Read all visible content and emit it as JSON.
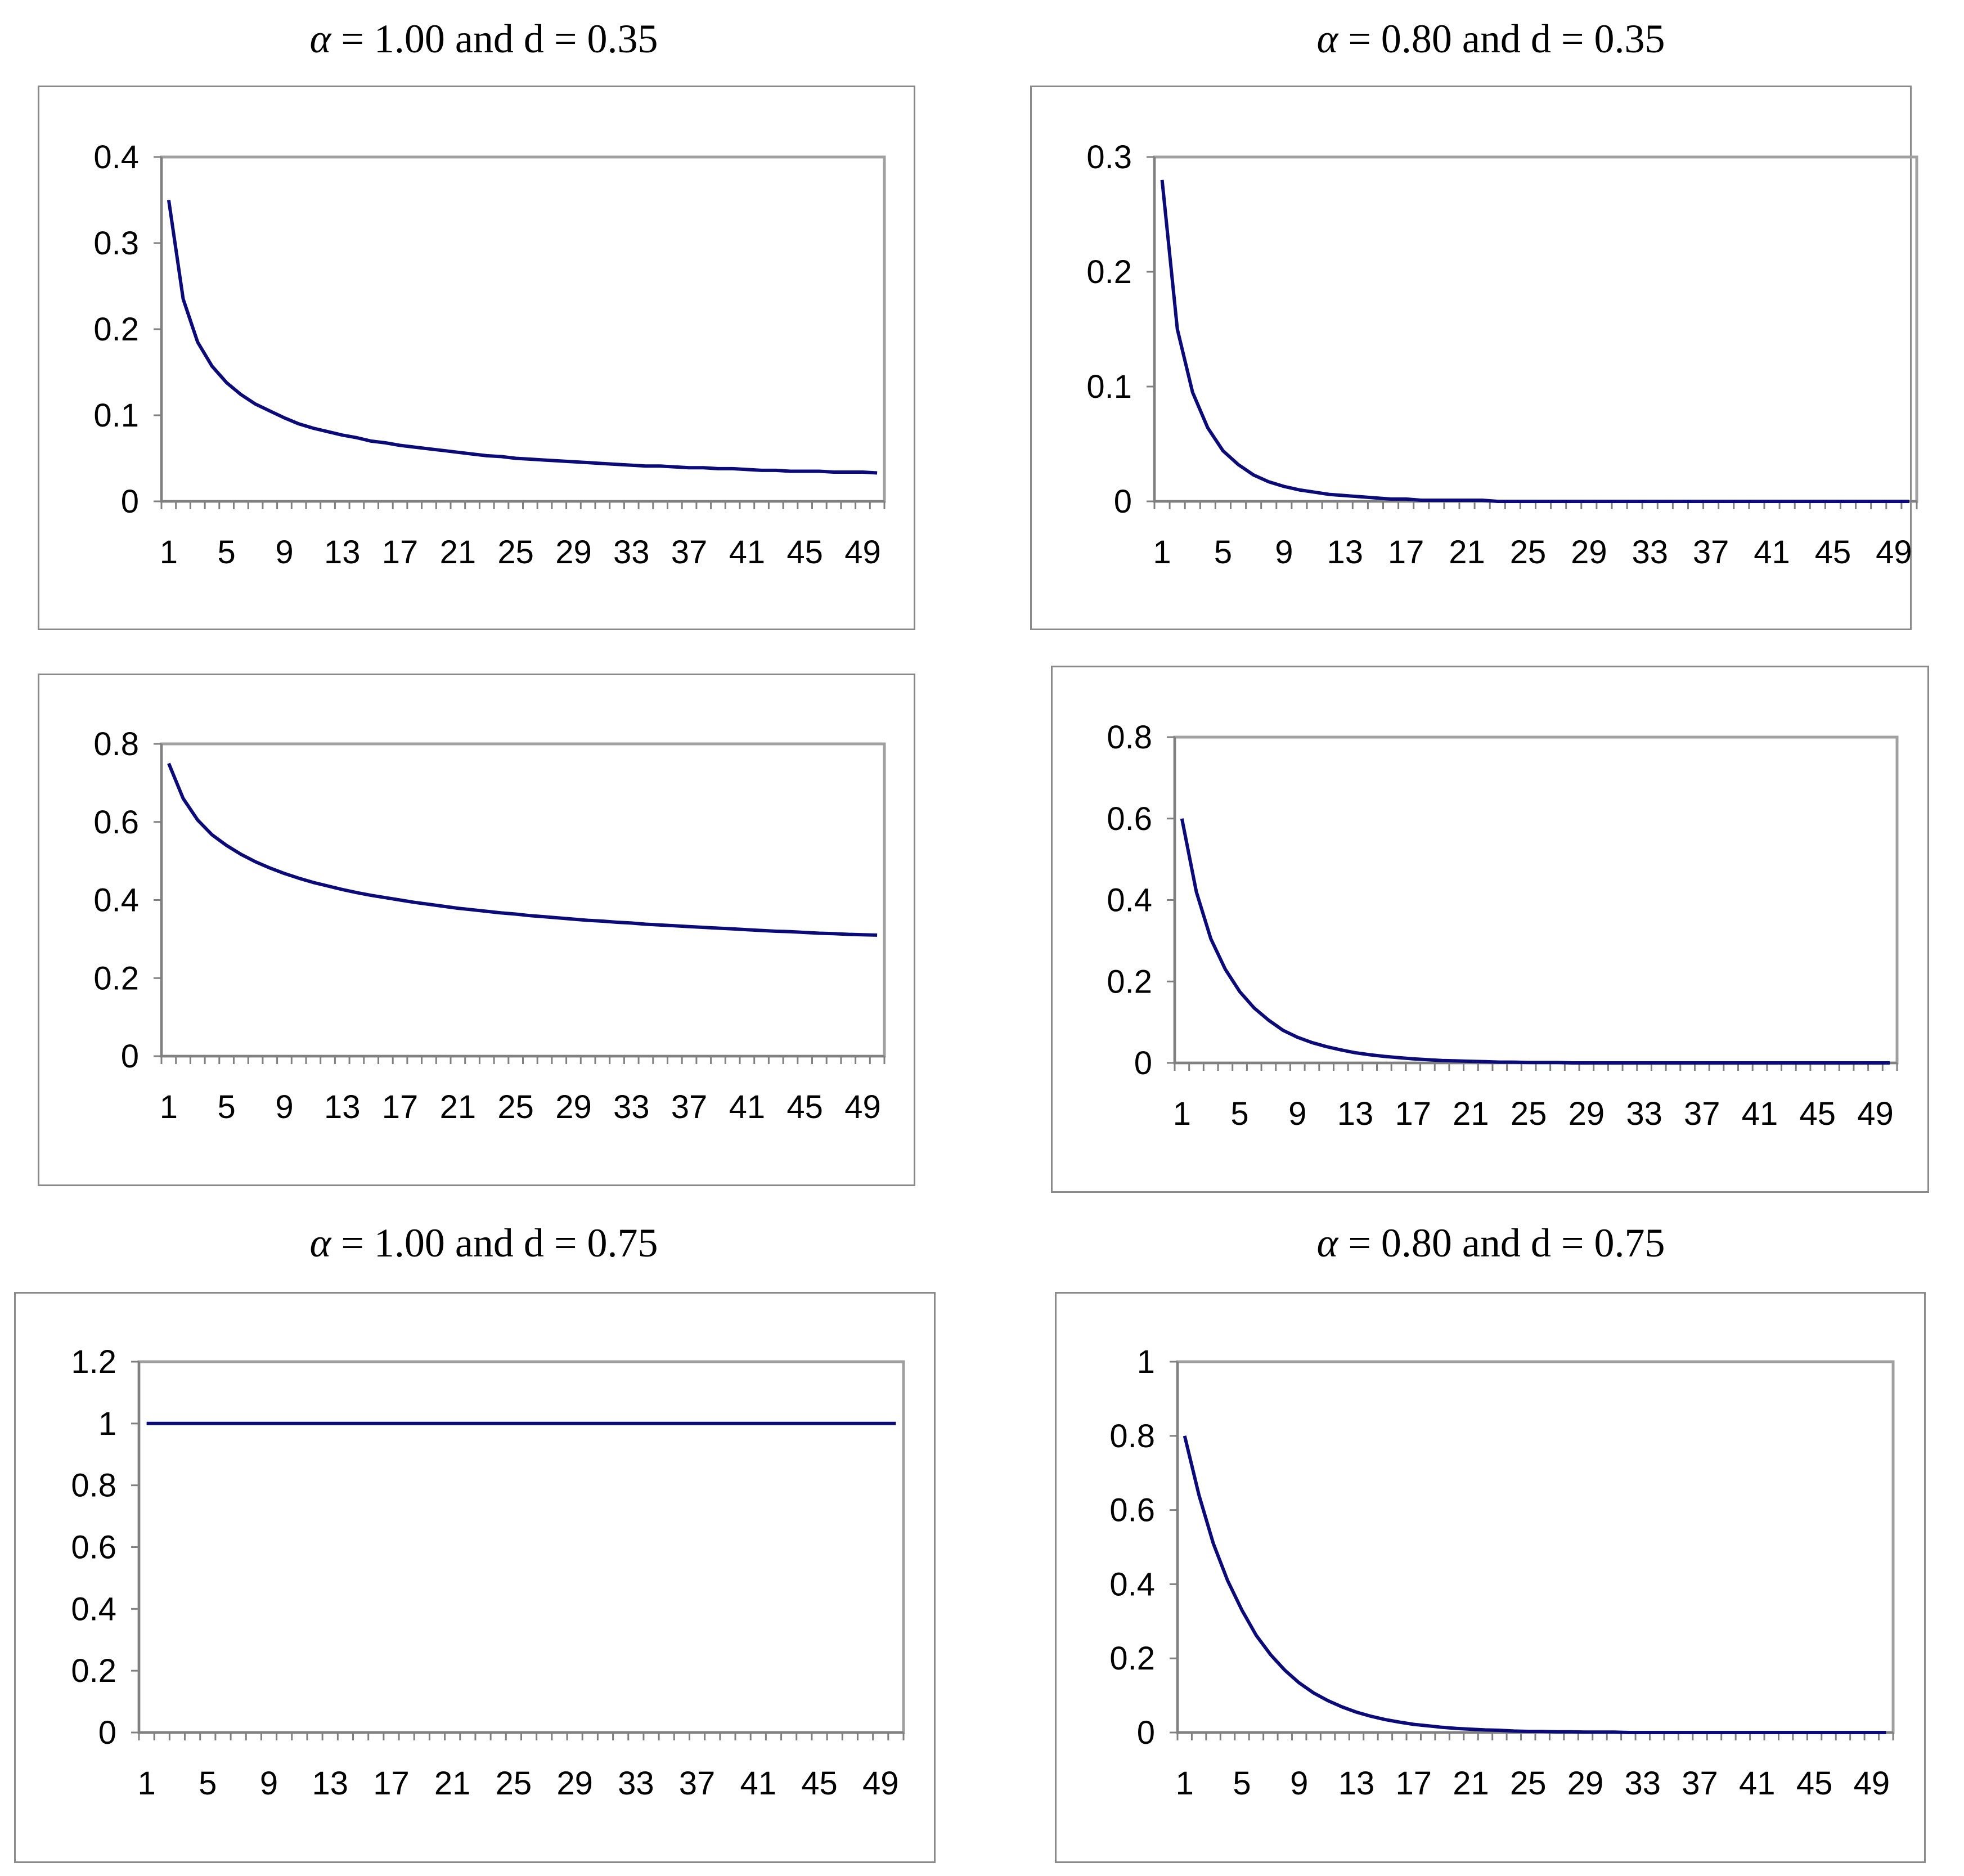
{
  "titles": {
    "top_left": {
      "alpha": "α",
      "rest": " = 1.00 and d = 0.35"
    },
    "top_right": {
      "alpha": "α",
      "rest": " = 0.80 and d = 0.35"
    },
    "bottom_left": {
      "alpha": "α",
      "rest": " = 1.00 and d = 0.75"
    },
    "bottom_right": {
      "alpha": "α",
      "rest": " = 0.80 and d = 0.75"
    }
  },
  "colors": {
    "line": "#0a0a78",
    "plot_border": "#a0a0a0",
    "axis": "#808080"
  },
  "x_tick_labels": [
    "1",
    "5",
    "9",
    "13",
    "17",
    "21",
    "25",
    "29",
    "33",
    "37",
    "41",
    "45",
    "49"
  ],
  "chart_data": [
    {
      "id": "top_left",
      "type": "line",
      "x": [
        1,
        2,
        3,
        4,
        5,
        6,
        7,
        8,
        9,
        10,
        11,
        12,
        13,
        14,
        15,
        16,
        17,
        18,
        19,
        20,
        21,
        22,
        23,
        24,
        25,
        26,
        27,
        28,
        29,
        30,
        31,
        32,
        33,
        34,
        35,
        36,
        37,
        38,
        39,
        40,
        41,
        42,
        43,
        44,
        45,
        46,
        47,
        48,
        49,
        50
      ],
      "values": [
        0.35,
        0.235,
        0.185,
        0.157,
        0.138,
        0.124,
        0.113,
        0.105,
        0.097,
        0.09,
        0.085,
        0.081,
        0.077,
        0.074,
        0.07,
        0.068,
        0.065,
        0.063,
        0.061,
        0.059,
        0.057,
        0.055,
        0.053,
        0.052,
        0.05,
        0.049,
        0.048,
        0.047,
        0.046,
        0.045,
        0.044,
        0.043,
        0.042,
        0.041,
        0.041,
        0.04,
        0.039,
        0.039,
        0.038,
        0.038,
        0.037,
        0.036,
        0.036,
        0.035,
        0.035,
        0.035,
        0.034,
        0.034,
        0.034,
        0.033
      ],
      "y_ticks": [
        "0",
        "0.1",
        "0.2",
        "0.3",
        "0.4"
      ],
      "ylim": [
        0,
        0.4
      ],
      "xlim": [
        1,
        50
      ]
    },
    {
      "id": "top_right",
      "type": "line",
      "x": [
        1,
        2,
        3,
        4,
        5,
        6,
        7,
        8,
        9,
        10,
        11,
        12,
        13,
        14,
        15,
        16,
        17,
        18,
        19,
        20,
        21,
        22,
        23,
        24,
        25,
        26,
        27,
        28,
        29,
        30,
        31,
        32,
        33,
        34,
        35,
        36,
        37,
        38,
        39,
        40,
        41,
        42,
        43,
        44,
        45,
        46,
        47,
        48,
        49,
        50
      ],
      "values": [
        0.28,
        0.15,
        0.095,
        0.064,
        0.044,
        0.032,
        0.023,
        0.017,
        0.013,
        0.01,
        0.008,
        0.006,
        0.005,
        0.004,
        0.003,
        0.002,
        0.002,
        0.001,
        0.001,
        0.001,
        0.001,
        0.001,
        0,
        0,
        0,
        0,
        0,
        0,
        0,
        0,
        0,
        0,
        0,
        0,
        0,
        0,
        0,
        0,
        0,
        0,
        0,
        0,
        0,
        0,
        0,
        0,
        0,
        0,
        0,
        0
      ],
      "y_ticks": [
        "0",
        "0.1",
        "0.2",
        "0.3"
      ],
      "ylim": [
        0,
        0.3
      ],
      "xlim": [
        1,
        50
      ]
    },
    {
      "id": "middle_left",
      "type": "line",
      "x": [
        1,
        2,
        3,
        4,
        5,
        6,
        7,
        8,
        9,
        10,
        11,
        12,
        13,
        14,
        15,
        16,
        17,
        18,
        19,
        20,
        21,
        22,
        23,
        24,
        25,
        26,
        27,
        28,
        29,
        30,
        31,
        32,
        33,
        34,
        35,
        36,
        37,
        38,
        39,
        40,
        41,
        42,
        43,
        44,
        45,
        46,
        47,
        48,
        49,
        50
      ],
      "values": [
        0.75,
        0.66,
        0.605,
        0.567,
        0.54,
        0.517,
        0.498,
        0.482,
        0.468,
        0.456,
        0.445,
        0.436,
        0.427,
        0.419,
        0.412,
        0.406,
        0.4,
        0.394,
        0.389,
        0.384,
        0.379,
        0.375,
        0.371,
        0.367,
        0.364,
        0.36,
        0.357,
        0.354,
        0.351,
        0.348,
        0.346,
        0.343,
        0.341,
        0.338,
        0.336,
        0.334,
        0.332,
        0.33,
        0.328,
        0.326,
        0.324,
        0.322,
        0.32,
        0.319,
        0.317,
        0.315,
        0.314,
        0.312,
        0.311,
        0.31
      ],
      "y_ticks": [
        "0",
        "0.2",
        "0.4",
        "0.6",
        "0.8"
      ],
      "ylim": [
        0,
        0.8
      ],
      "xlim": [
        1,
        50
      ]
    },
    {
      "id": "middle_right",
      "type": "line",
      "x": [
        1,
        2,
        3,
        4,
        5,
        6,
        7,
        8,
        9,
        10,
        11,
        12,
        13,
        14,
        15,
        16,
        17,
        18,
        19,
        20,
        21,
        22,
        23,
        24,
        25,
        26,
        27,
        28,
        29,
        30,
        31,
        32,
        33,
        34,
        35,
        36,
        37,
        38,
        39,
        40,
        41,
        42,
        43,
        44,
        45,
        46,
        47,
        48,
        49,
        50
      ],
      "values": [
        0.6,
        0.42,
        0.305,
        0.23,
        0.175,
        0.135,
        0.105,
        0.08,
        0.063,
        0.05,
        0.04,
        0.032,
        0.025,
        0.02,
        0.016,
        0.013,
        0.01,
        0.008,
        0.006,
        0.005,
        0.004,
        0.003,
        0.002,
        0.002,
        0.001,
        0.001,
        0.001,
        0,
        0,
        0,
        0,
        0,
        0,
        0,
        0,
        0,
        0,
        0,
        0,
        0,
        0,
        0,
        0,
        0,
        0,
        0,
        0,
        0,
        0,
        0
      ],
      "y_ticks": [
        "0",
        "0.2",
        "0.4",
        "0.6",
        "0.8"
      ],
      "ylim": [
        0,
        0.8
      ],
      "xlim": [
        1,
        50
      ]
    },
    {
      "id": "bottom_left",
      "type": "line",
      "x": [
        1,
        2,
        3,
        4,
        5,
        6,
        7,
        8,
        9,
        10,
        11,
        12,
        13,
        14,
        15,
        16,
        17,
        18,
        19,
        20,
        21,
        22,
        23,
        24,
        25,
        26,
        27,
        28,
        29,
        30,
        31,
        32,
        33,
        34,
        35,
        36,
        37,
        38,
        39,
        40,
        41,
        42,
        43,
        44,
        45,
        46,
        47,
        48,
        49,
        50
      ],
      "values": [
        1,
        1,
        1,
        1,
        1,
        1,
        1,
        1,
        1,
        1,
        1,
        1,
        1,
        1,
        1,
        1,
        1,
        1,
        1,
        1,
        1,
        1,
        1,
        1,
        1,
        1,
        1,
        1,
        1,
        1,
        1,
        1,
        1,
        1,
        1,
        1,
        1,
        1,
        1,
        1,
        1,
        1,
        1,
        1,
        1,
        1,
        1,
        1,
        1,
        1
      ],
      "y_ticks": [
        "0",
        "0.2",
        "0.4",
        "0.6",
        "0.8",
        "1",
        "1.2"
      ],
      "ylim": [
        0,
        1.2
      ],
      "xlim": [
        1,
        50
      ]
    },
    {
      "id": "bottom_right",
      "type": "line",
      "x": [
        1,
        2,
        3,
        4,
        5,
        6,
        7,
        8,
        9,
        10,
        11,
        12,
        13,
        14,
        15,
        16,
        17,
        18,
        19,
        20,
        21,
        22,
        23,
        24,
        25,
        26,
        27,
        28,
        29,
        30,
        31,
        32,
        33,
        34,
        35,
        36,
        37,
        38,
        39,
        40,
        41,
        42,
        43,
        44,
        45,
        46,
        47,
        48,
        49,
        50
      ],
      "values": [
        0.8,
        0.64,
        0.51,
        0.41,
        0.33,
        0.262,
        0.21,
        0.168,
        0.134,
        0.107,
        0.086,
        0.069,
        0.055,
        0.044,
        0.035,
        0.028,
        0.022,
        0.018,
        0.014,
        0.011,
        0.009,
        0.007,
        0.006,
        0.004,
        0.003,
        0.003,
        0.002,
        0.002,
        0.001,
        0.001,
        0.001,
        0,
        0,
        0,
        0,
        0,
        0,
        0,
        0,
        0,
        0,
        0,
        0,
        0,
        0,
        0,
        0,
        0,
        0,
        0
      ],
      "y_ticks": [
        "0",
        "0.2",
        "0.4",
        "0.6",
        "0.8",
        "1"
      ],
      "ylim": [
        0,
        1
      ],
      "xlim": [
        1,
        50
      ]
    }
  ]
}
